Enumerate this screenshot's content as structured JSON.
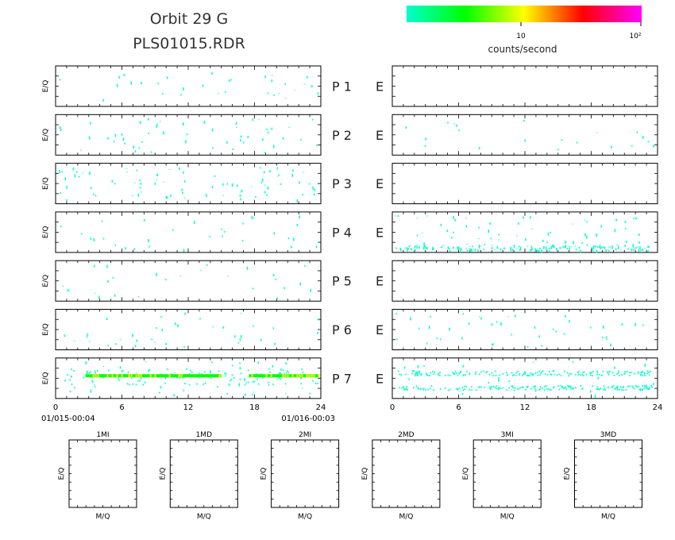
{
  "header": {
    "title": "Orbit  29  G",
    "filename": "PLS01015.RDR"
  },
  "colorbar": {
    "colors": [
      "#00ffcc",
      "#00ff00",
      "#ffff00",
      "#ff0000",
      "#ff00ff"
    ],
    "tick_labels": [
      "10",
      "10²"
    ],
    "label": "counts/second"
  },
  "chart_data": {
    "type": "heatmap",
    "x_ticks": [
      "0",
      "6",
      "12",
      "18",
      "24"
    ],
    "xlim": [
      0,
      24
    ],
    "ylabel": "E/Q",
    "start_label": "01/015-00:04",
    "end_label": "01/016-00:03",
    "channel_letter": "E",
    "rows": [
      {
        "name": "P  1",
        "left_density": 0.35,
        "right_density": 0.0,
        "left_band": null,
        "right_band": null
      },
      {
        "name": "P  2",
        "left_density": 0.55,
        "right_density": 0.22,
        "left_band": null,
        "right_band": null
      },
      {
        "name": "P  3",
        "left_density": 0.9,
        "right_density": 0.0,
        "left_band": null,
        "right_band": null
      },
      {
        "name": "P  4",
        "left_density": 0.35,
        "right_density": 0.65,
        "left_band": null,
        "right_band": "low"
      },
      {
        "name": "P  5",
        "left_density": 0.3,
        "right_density": 0.0,
        "left_band": null,
        "right_band": null
      },
      {
        "name": "P  6",
        "left_density": 0.4,
        "right_density": 0.45,
        "left_band": null,
        "right_band": null
      },
      {
        "name": "P  7",
        "left_density": 0.5,
        "right_density": 0.3,
        "left_band": "dense",
        "right_band": "double"
      }
    ]
  },
  "mass_panels": {
    "xlabel": "M/Q",
    "ylabel": "E/Q",
    "titles": [
      "1MI",
      "1MD",
      "2MI",
      "2MD",
      "3MI",
      "3MD"
    ]
  }
}
